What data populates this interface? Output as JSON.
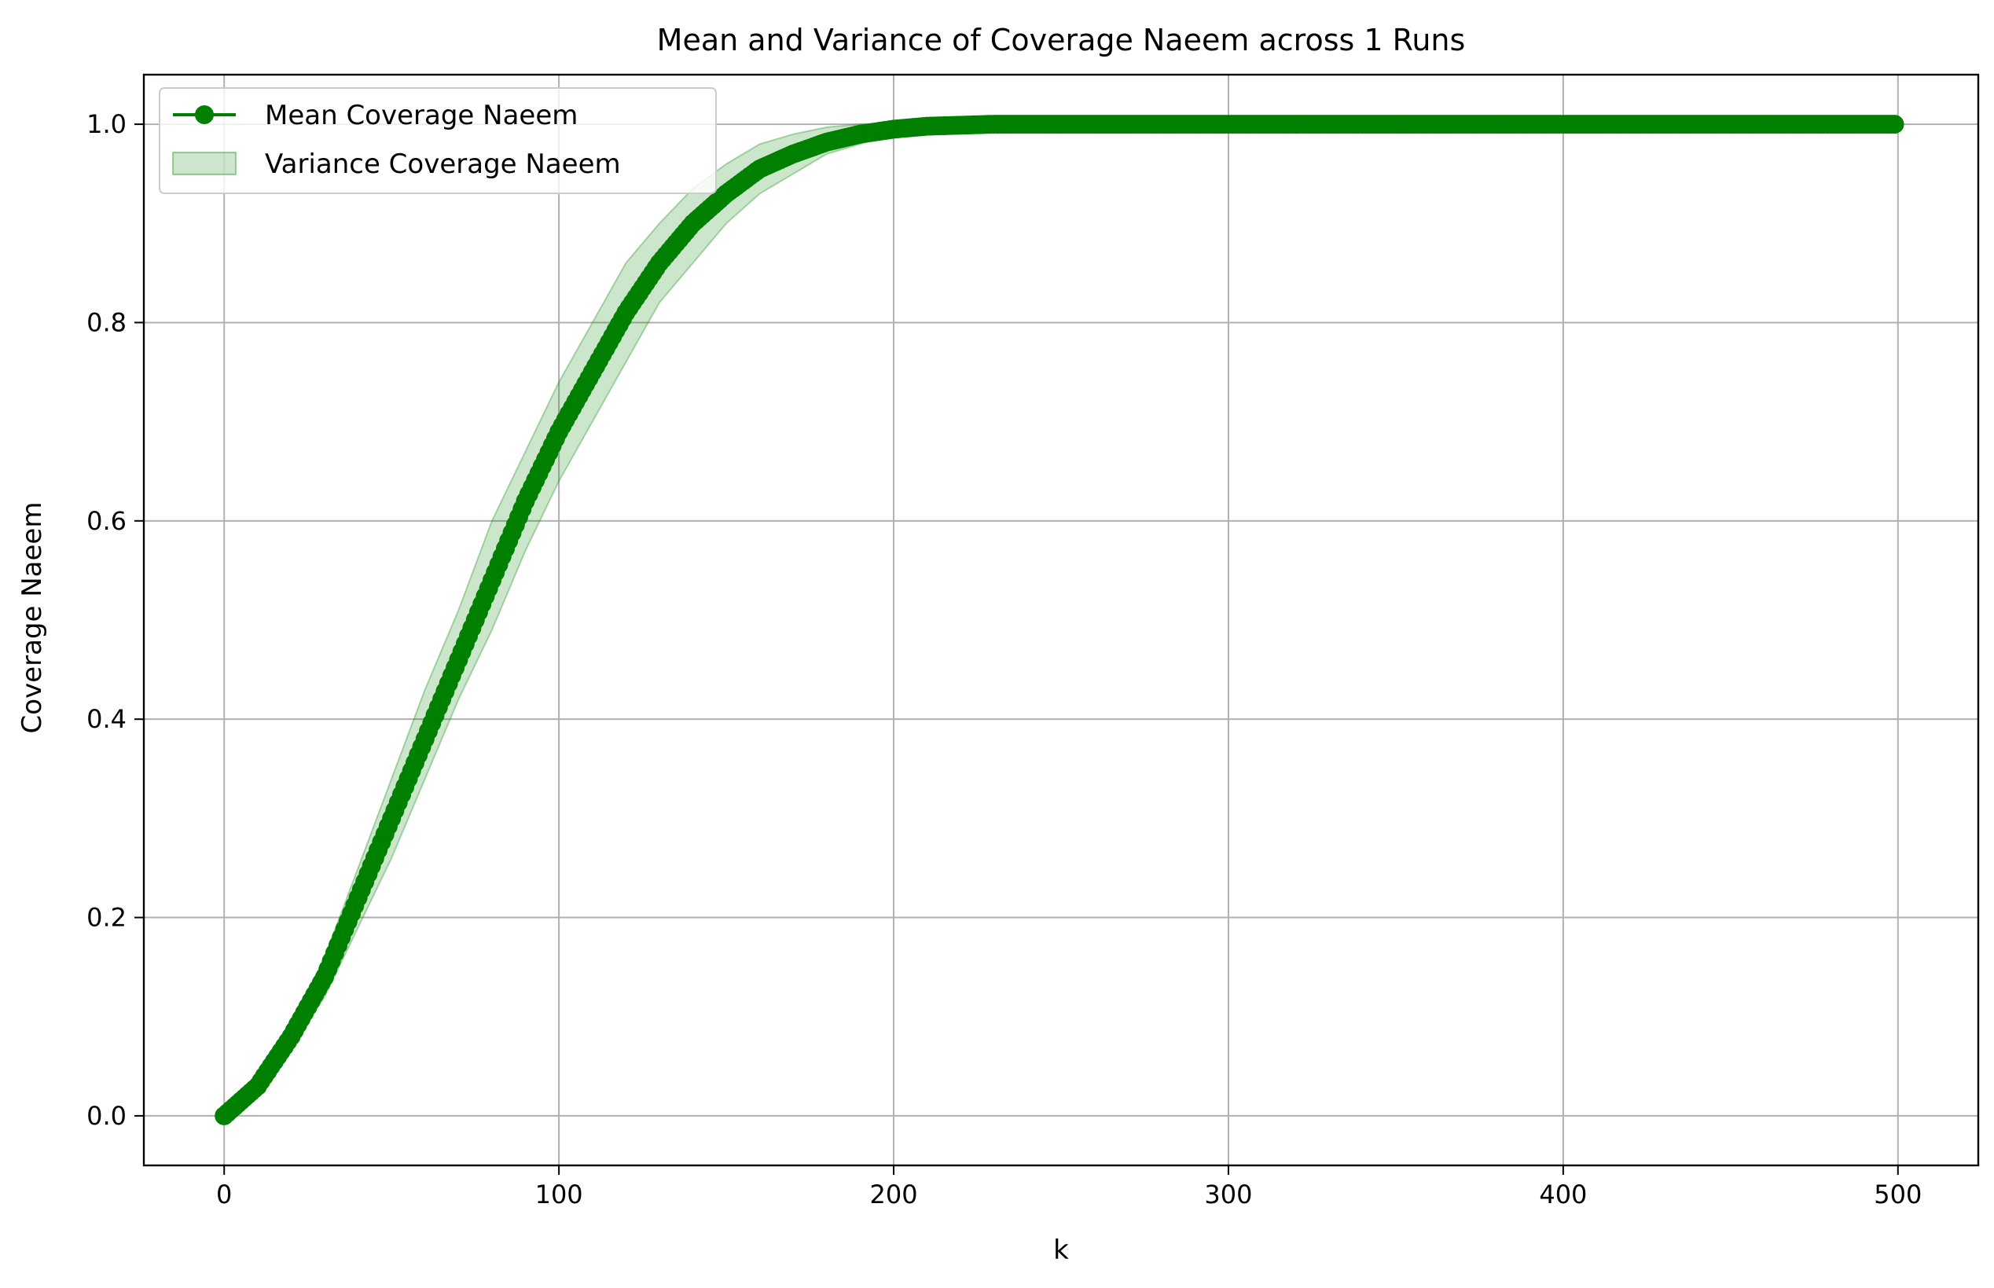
{
  "chart_data": {
    "type": "line",
    "title": "Mean and Variance of Coverage Naeem across 1 Runs",
    "xlabel": "k",
    "ylabel": "Coverage Naeem",
    "xlim": [
      -24,
      524
    ],
    "ylim": [
      -0.05,
      1.05
    ],
    "xticks": [
      0,
      100,
      200,
      300,
      400,
      500
    ],
    "xtick_labels": [
      "0",
      "100",
      "200",
      "300",
      "400",
      "500"
    ],
    "yticks": [
      0.0,
      0.2,
      0.4,
      0.6,
      0.8,
      1.0
    ],
    "ytick_labels": [
      "0.0",
      "0.2",
      "0.4",
      "0.6",
      "0.8",
      "1.0"
    ],
    "grid": true,
    "legend_position": "upper-left",
    "colors": {
      "line": "#008000",
      "band": "#008000",
      "grid": "#b0b0b0"
    },
    "series": [
      {
        "name": "Mean Coverage Naeem",
        "kind": "line-with-markers",
        "x": [
          0,
          10,
          20,
          30,
          40,
          50,
          60,
          70,
          80,
          90,
          100,
          110,
          120,
          130,
          140,
          150,
          160,
          170,
          180,
          190,
          200,
          210,
          220,
          230,
          240,
          250,
          300,
          350,
          400,
          450,
          499
        ],
        "y": [
          0.0,
          0.03,
          0.08,
          0.14,
          0.22,
          0.3,
          0.38,
          0.46,
          0.54,
          0.62,
          0.69,
          0.75,
          0.81,
          0.86,
          0.9,
          0.93,
          0.955,
          0.97,
          0.982,
          0.99,
          0.995,
          0.998,
          0.999,
          1.0,
          1.0,
          1.0,
          1.0,
          1.0,
          1.0,
          1.0,
          1.0
        ]
      },
      {
        "name": "Variance Coverage Naeem",
        "kind": "band",
        "x": [
          0,
          10,
          20,
          30,
          40,
          50,
          60,
          70,
          80,
          90,
          100,
          110,
          120,
          130,
          140,
          150,
          160,
          170,
          180,
          190,
          200,
          210,
          220,
          230,
          240,
          250,
          300,
          350,
          400,
          450,
          499
        ],
        "lower": [
          0.0,
          0.025,
          0.07,
          0.12,
          0.19,
          0.26,
          0.34,
          0.42,
          0.49,
          0.57,
          0.64,
          0.7,
          0.76,
          0.82,
          0.86,
          0.9,
          0.93,
          0.95,
          0.97,
          0.98,
          0.99,
          0.995,
          0.998,
          0.999,
          1.0,
          1.0,
          1.0,
          1.0,
          1.0,
          1.0,
          1.0
        ],
        "upper": [
          0.0,
          0.035,
          0.09,
          0.16,
          0.25,
          0.34,
          0.43,
          0.51,
          0.6,
          0.67,
          0.74,
          0.8,
          0.86,
          0.9,
          0.935,
          0.96,
          0.98,
          0.99,
          0.997,
          1.0,
          1.0,
          1.0,
          1.0,
          1.0,
          1.0,
          1.0,
          1.0,
          1.0,
          1.0,
          1.0,
          1.0
        ]
      }
    ]
  }
}
